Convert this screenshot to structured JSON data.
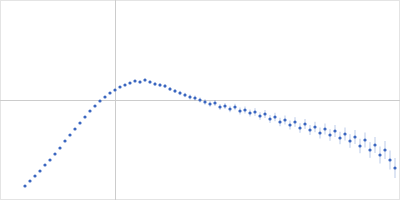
{
  "chart_data": {
    "type": "scatter",
    "color": "#3a66c0",
    "marker": "circle",
    "grid": true,
    "tick_labels": false,
    "xlim": [
      0,
      0.4
    ],
    "ylim": [
      0,
      2
    ],
    "xticks": [
      0.115
    ],
    "yticks": [
      1
    ],
    "x": [
      0.025,
      0.03,
      0.035,
      0.04,
      0.045,
      0.05,
      0.055,
      0.06,
      0.065,
      0.07,
      0.075,
      0.08,
      0.085,
      0.09,
      0.095,
      0.1,
      0.105,
      0.11,
      0.115,
      0.12,
      0.125,
      0.13,
      0.135,
      0.14,
      0.145,
      0.15,
      0.155,
      0.16,
      0.165,
      0.17,
      0.175,
      0.18,
      0.185,
      0.19,
      0.195,
      0.2,
      0.205,
      0.21,
      0.215,
      0.22,
      0.225,
      0.23,
      0.235,
      0.24,
      0.245,
      0.25,
      0.255,
      0.26,
      0.265,
      0.27,
      0.275,
      0.28,
      0.285,
      0.29,
      0.295,
      0.3,
      0.305,
      0.31,
      0.315,
      0.32,
      0.325,
      0.33,
      0.335,
      0.34,
      0.345,
      0.35,
      0.355,
      0.36,
      0.365,
      0.37,
      0.375,
      0.38,
      0.385,
      0.39,
      0.395
    ],
    "values": [
      0.14,
      0.19,
      0.24,
      0.29,
      0.35,
      0.4,
      0.46,
      0.52,
      0.59,
      0.65,
      0.71,
      0.77,
      0.83,
      0.89,
      0.94,
      0.99,
      1.03,
      1.07,
      1.1,
      1.13,
      1.15,
      1.17,
      1.19,
      1.18,
      1.2,
      1.18,
      1.16,
      1.15,
      1.14,
      1.11,
      1.09,
      1.07,
      1.05,
      1.03,
      1.02,
      1.0,
      0.98,
      0.96,
      0.97,
      0.93,
      0.94,
      0.91,
      0.93,
      0.89,
      0.9,
      0.87,
      0.88,
      0.84,
      0.86,
      0.81,
      0.83,
      0.78,
      0.8,
      0.75,
      0.78,
      0.72,
      0.76,
      0.7,
      0.73,
      0.67,
      0.71,
      0.65,
      0.69,
      0.62,
      0.66,
      0.59,
      0.63,
      0.54,
      0.6,
      0.5,
      0.55,
      0.45,
      0.5,
      0.4,
      0.32
    ],
    "errors": [
      0.005,
      0.005,
      0.005,
      0.005,
      0.005,
      0.005,
      0.005,
      0.005,
      0.005,
      0.005,
      0.005,
      0.005,
      0.005,
      0.005,
      0.005,
      0.008,
      0.008,
      0.01,
      0.01,
      0.01,
      0.012,
      0.012,
      0.012,
      0.015,
      0.015,
      0.015,
      0.018,
      0.018,
      0.02,
      0.02,
      0.02,
      0.022,
      0.022,
      0.025,
      0.025,
      0.025,
      0.028,
      0.028,
      0.03,
      0.03,
      0.03,
      0.032,
      0.032,
      0.035,
      0.035,
      0.035,
      0.038,
      0.038,
      0.04,
      0.04,
      0.042,
      0.042,
      0.045,
      0.045,
      0.048,
      0.048,
      0.05,
      0.05,
      0.052,
      0.055,
      0.055,
      0.058,
      0.06,
      0.062,
      0.065,
      0.068,
      0.07,
      0.072,
      0.075,
      0.078,
      0.08,
      0.085,
      0.09,
      0.095,
      0.1
    ]
  }
}
